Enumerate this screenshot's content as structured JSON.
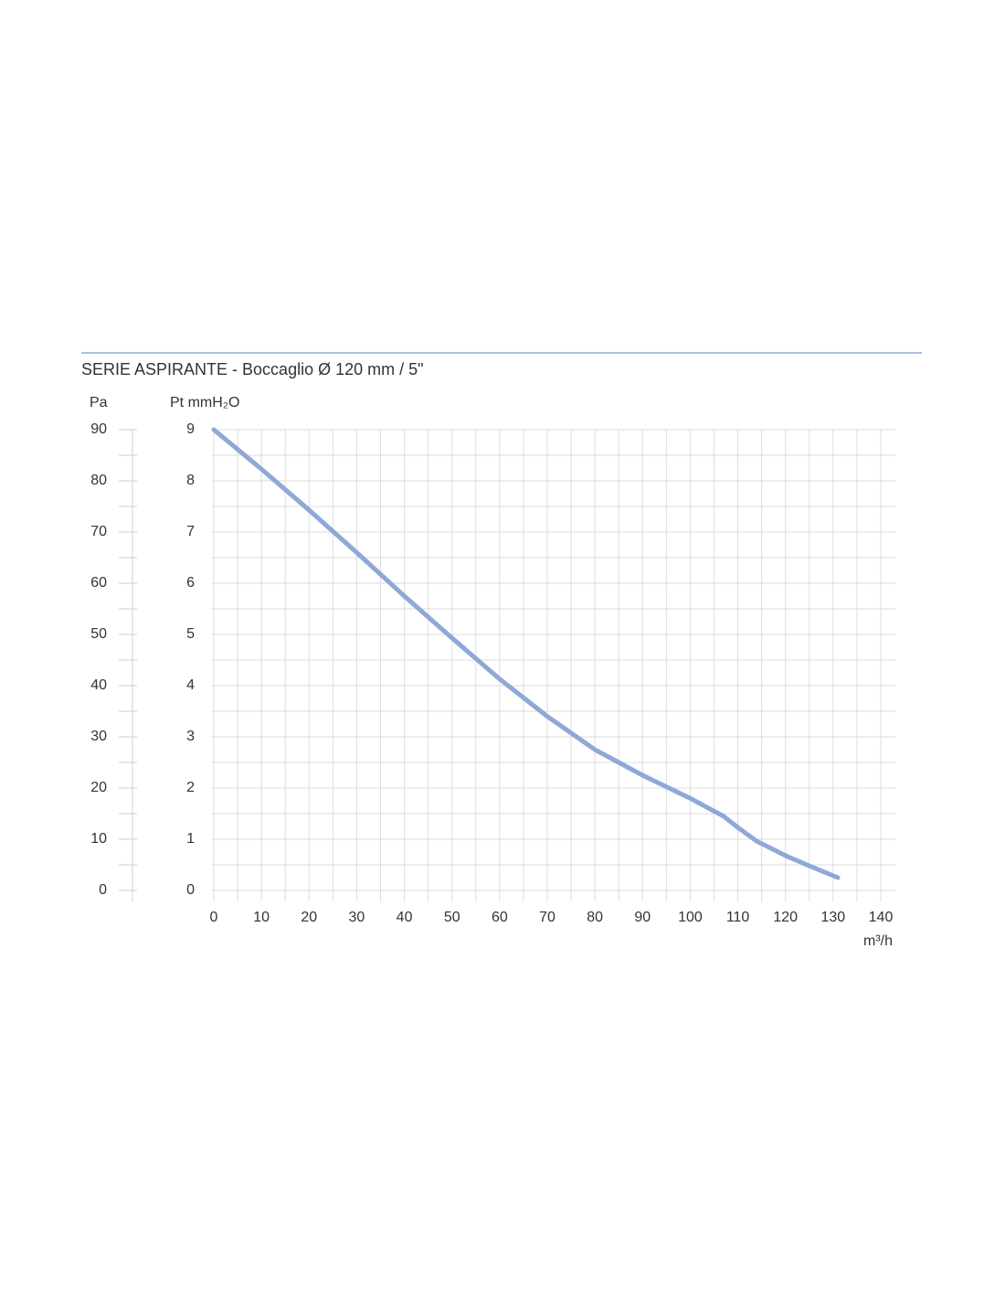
{
  "chart_data": {
    "type": "line",
    "title": "SERIE ASPIRANTE  - Boccaglio Ø 120 mm / 5\"",
    "ylabel": "Pa",
    "y2label": "Pt mmH₂O",
    "xlabel": "m³/h",
    "x": [
      0,
      10,
      20,
      30,
      40,
      50,
      60,
      70,
      80,
      90,
      100,
      107,
      110,
      114,
      120,
      125,
      131
    ],
    "values": [
      90,
      82.3,
      74.3,
      66,
      57.5,
      49.3,
      41.3,
      34,
      27.5,
      22.5,
      18,
      14.5,
      12.3,
      9.6,
      6.8,
      4.8,
      2.5
    ],
    "color": "#8ea8d8",
    "xlim": [
      0,
      140
    ],
    "xticks": [
      0,
      10,
      20,
      30,
      40,
      50,
      60,
      70,
      80,
      90,
      100,
      110,
      120,
      130,
      140
    ],
    "ylim": [
      0,
      90
    ],
    "yticks": [
      0,
      10,
      20,
      30,
      40,
      50,
      60,
      70,
      80,
      90
    ],
    "y2lim": [
      0,
      9
    ],
    "y2ticks": [
      0,
      1,
      2,
      3,
      4,
      5,
      6,
      7,
      8,
      9
    ],
    "grid": true
  }
}
